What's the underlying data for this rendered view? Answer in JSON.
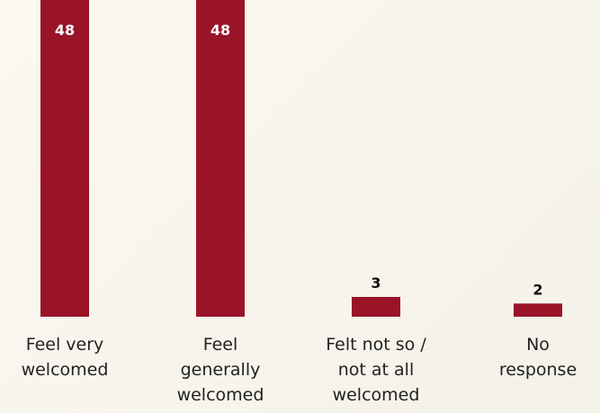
{
  "colors": {
    "bar": "#9a1428"
  },
  "chart_data": {
    "type": "bar",
    "categories": [
      [
        "Feel very",
        "welcomed"
      ],
      [
        "Feel",
        "generally",
        "welcomed"
      ],
      [
        "Felt not so /",
        "not at all",
        "welcomed"
      ],
      [
        "No",
        "response"
      ]
    ],
    "values": [
      48,
      48,
      3,
      2
    ],
    "value_labels": [
      "48",
      "48",
      "3",
      "2"
    ],
    "ylim": [
      0,
      48
    ],
    "grid": false,
    "legend": "none"
  }
}
